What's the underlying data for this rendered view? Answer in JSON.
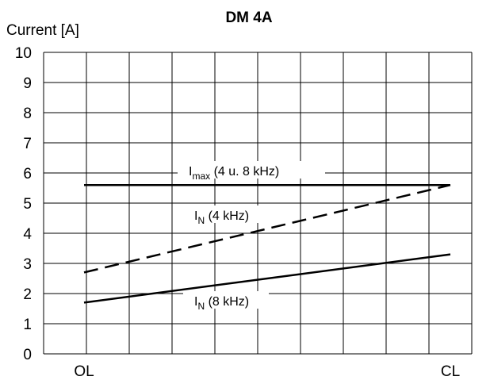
{
  "chart_data": {
    "type": "line",
    "title": "DM 4A",
    "ylabel": "Current [A]",
    "xlabel": "",
    "categories": [
      "OL",
      "CL"
    ],
    "ylim": [
      0,
      10
    ],
    "yticks": [
      "0",
      "1",
      "2",
      "3",
      "4",
      "5",
      "6",
      "7",
      "8",
      "9",
      "10"
    ],
    "x_gridlines": 10,
    "grid": true,
    "series": [
      {
        "name_main": "I",
        "name_sub": "max",
        "name_rest": " (4 u. 8 kHz)",
        "values": [
          5.6,
          5.6
        ],
        "style": "solid"
      },
      {
        "name_main": "I",
        "name_sub": "N",
        "name_rest": " (4 kHz)",
        "values": [
          2.7,
          5.6
        ],
        "style": "dashed"
      },
      {
        "name_main": "I",
        "name_sub": "N",
        "name_rest": " (8 kHz)",
        "values": [
          1.7,
          3.3
        ],
        "style": "solid"
      }
    ],
    "colors": {
      "line": "#000000",
      "grid": "#000000",
      "background": "#ffffff"
    }
  }
}
